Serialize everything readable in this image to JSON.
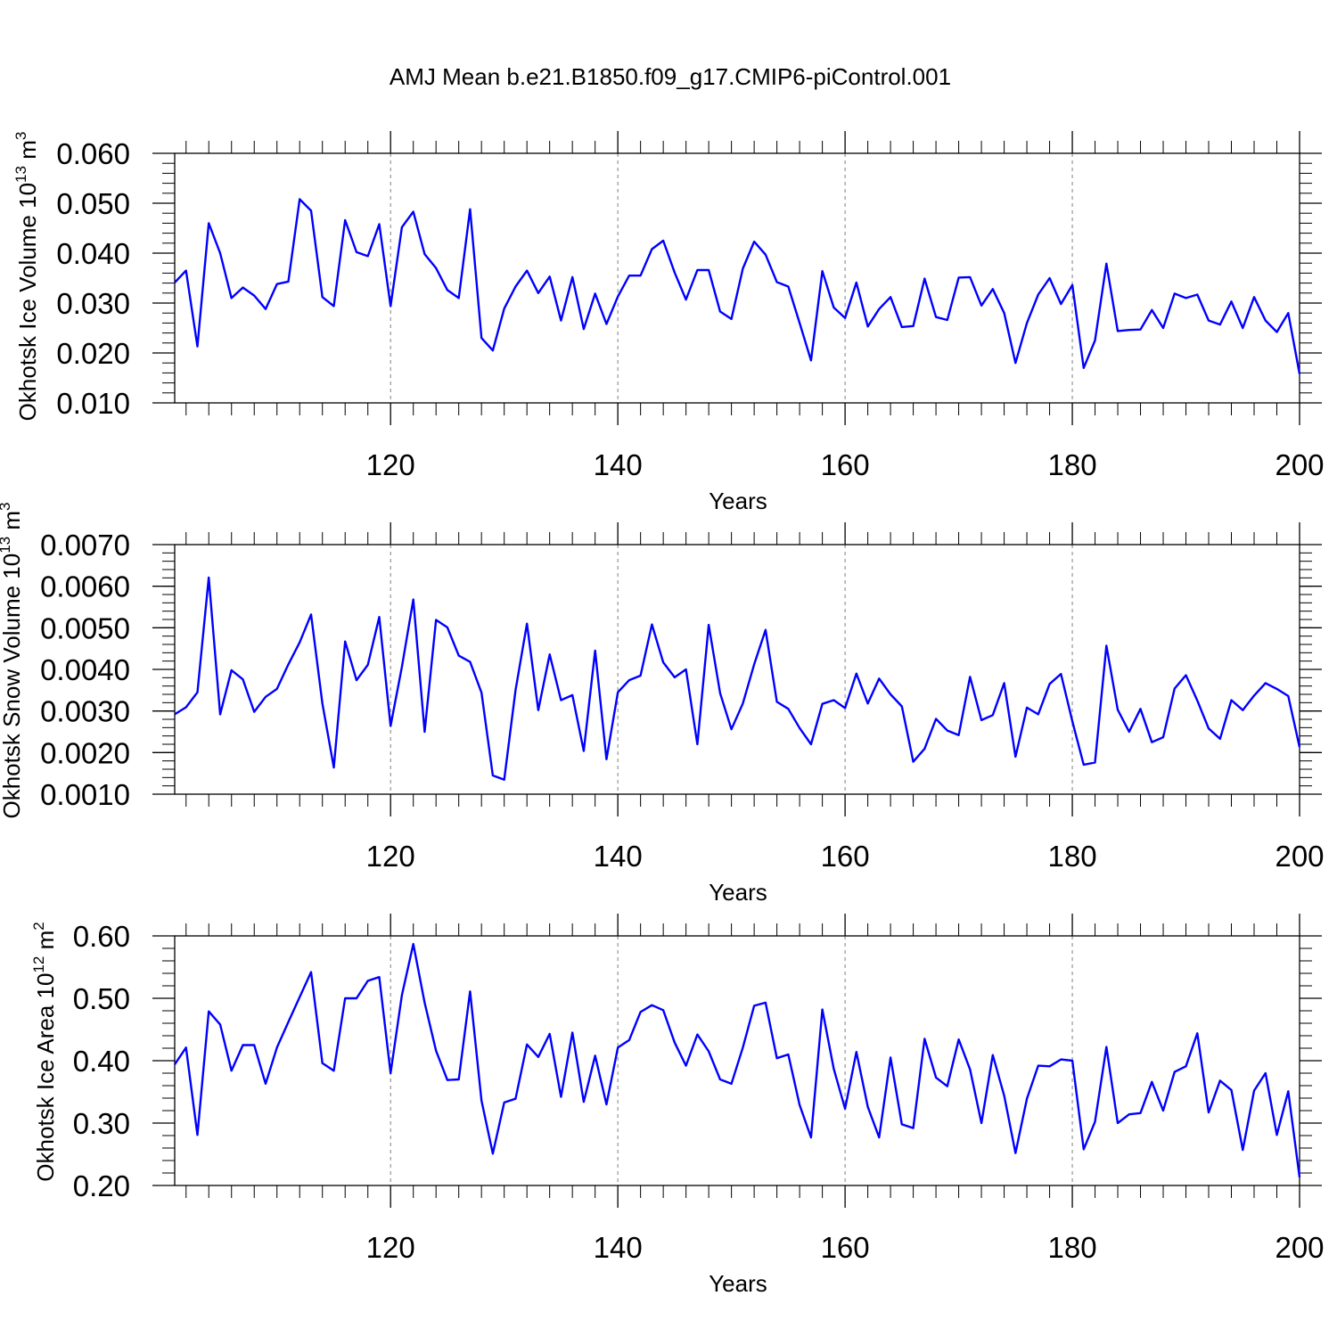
{
  "title": "AMJ Mean b.e21.B1850.f09_g17.CMIP6-piControl.001",
  "colors": {
    "line": "#0000ff",
    "axis": "#000000",
    "grid": "#7f7f7f"
  },
  "chart_data": [
    {
      "type": "line",
      "xlabel": "Years",
      "ylabel": {
        "main": "Okhotsk Ice Volume 10",
        "exp": "13",
        "mid": " m",
        "unit_exp": "3"
      },
      "xlim": [
        101,
        200
      ],
      "ylim": [
        0.01,
        0.06
      ],
      "xticks": [
        120,
        140,
        160,
        180,
        200
      ],
      "xtick_labels": [
        "120",
        "140",
        "160",
        "180",
        "200"
      ],
      "yticks": [
        0.01,
        0.02,
        0.03,
        0.04,
        0.05,
        0.06
      ],
      "ytick_labels": [
        "0.010",
        "0.020",
        "0.030",
        "0.040",
        "0.050",
        "0.060"
      ],
      "yminor": 0.002,
      "x_start": 101,
      "values": [
        0.0341,
        0.0365,
        0.0213,
        0.046,
        0.04,
        0.031,
        0.0331,
        0.0315,
        0.0288,
        0.0338,
        0.0343,
        0.0508,
        0.0485,
        0.0312,
        0.0294,
        0.0466,
        0.0402,
        0.0394,
        0.0458,
        0.0294,
        0.0452,
        0.0483,
        0.0398,
        0.037,
        0.0326,
        0.031,
        0.0488,
        0.023,
        0.0205,
        0.0289,
        0.0333,
        0.0365,
        0.032,
        0.0353,
        0.0265,
        0.0352,
        0.0248,
        0.0319,
        0.0258,
        0.0313,
        0.0355,
        0.0355,
        0.0408,
        0.0425,
        0.0361,
        0.0307,
        0.0366,
        0.0366,
        0.0283,
        0.0268,
        0.0369,
        0.0423,
        0.0397,
        0.0342,
        0.0333,
        0.026,
        0.0185,
        0.0364,
        0.0291,
        0.027,
        0.0341,
        0.0253,
        0.0288,
        0.0312,
        0.0252,
        0.0254,
        0.0349,
        0.0272,
        0.0266,
        0.0351,
        0.0352,
        0.0295,
        0.0328,
        0.028,
        0.018,
        0.026,
        0.0317,
        0.035,
        0.0298,
        0.0336,
        0.017,
        0.0225,
        0.0379,
        0.0244,
        0.0246,
        0.0247,
        0.0286,
        0.025,
        0.0319,
        0.031,
        0.0317,
        0.0265,
        0.0257,
        0.0303,
        0.025,
        0.0312,
        0.0265,
        0.0242,
        0.028,
        0.0158
      ]
    },
    {
      "type": "line",
      "xlabel": "Years",
      "ylabel": {
        "main": "Okhotsk Snow Volume 10",
        "exp": "13",
        "mid": " m",
        "unit_exp": "3"
      },
      "xlim": [
        101,
        200
      ],
      "ylim": [
        0.001,
        0.007
      ],
      "xticks": [
        120,
        140,
        160,
        180,
        200
      ],
      "xtick_labels": [
        "120",
        "140",
        "160",
        "180",
        "200"
      ],
      "yticks": [
        0.001,
        0.002,
        0.003,
        0.004,
        0.005,
        0.006,
        0.007
      ],
      "ytick_labels": [
        "0.0010",
        "0.0020",
        "0.0030",
        "0.0040",
        "0.0050",
        "0.0060",
        "0.0070"
      ],
      "yminor": 0.0002,
      "x_start": 101,
      "values": [
        0.00292,
        0.00309,
        0.00345,
        0.00621,
        0.00292,
        0.00398,
        0.00376,
        0.00298,
        0.00334,
        0.00353,
        0.00412,
        0.00465,
        0.00532,
        0.00318,
        0.00164,
        0.00467,
        0.00374,
        0.00411,
        0.00526,
        0.00264,
        0.00406,
        0.00568,
        0.0025,
        0.00519,
        0.00501,
        0.00433,
        0.00418,
        0.00344,
        0.00145,
        0.00135,
        0.0035,
        0.0051,
        0.00302,
        0.00436,
        0.00326,
        0.00338,
        0.00204,
        0.00445,
        0.00184,
        0.00345,
        0.00374,
        0.00385,
        0.00508,
        0.00417,
        0.00381,
        0.004,
        0.0022,
        0.00507,
        0.00343,
        0.00256,
        0.00318,
        0.00412,
        0.00495,
        0.00322,
        0.00305,
        0.00259,
        0.0022,
        0.00317,
        0.00326,
        0.00307,
        0.0039,
        0.00318,
        0.00378,
        0.0034,
        0.00311,
        0.00178,
        0.00209,
        0.00281,
        0.00253,
        0.00242,
        0.00382,
        0.00278,
        0.0029,
        0.00367,
        0.0019,
        0.00308,
        0.00292,
        0.00365,
        0.00389,
        0.00275,
        0.00171,
        0.00176,
        0.00457,
        0.00303,
        0.0025,
        0.00305,
        0.00225,
        0.00237,
        0.00354,
        0.00386,
        0.00325,
        0.00258,
        0.00233,
        0.00326,
        0.00302,
        0.00337,
        0.00367,
        0.00353,
        0.00336,
        0.00213
      ]
    },
    {
      "type": "line",
      "xlabel": "Years",
      "ylabel": {
        "main": "Okhotsk Ice Area 10",
        "exp": "12",
        "mid": " m",
        "unit_exp": "2"
      },
      "xlim": [
        101,
        200
      ],
      "ylim": [
        0.2,
        0.6
      ],
      "xticks": [
        120,
        140,
        160,
        180,
        200
      ],
      "xtick_labels": [
        "120",
        "140",
        "160",
        "180",
        "200"
      ],
      "yticks": [
        0.2,
        0.3,
        0.4,
        0.5,
        0.6
      ],
      "ytick_labels": [
        "0.20",
        "0.30",
        "0.40",
        "0.50",
        "0.60"
      ],
      "yminor": 0.02,
      "x_start": 101,
      "values": [
        0.394,
        0.421,
        0.281,
        0.479,
        0.458,
        0.384,
        0.425,
        0.425,
        0.363,
        0.421,
        0.462,
        0.502,
        0.542,
        0.396,
        0.384,
        0.5,
        0.5,
        0.528,
        0.534,
        0.38,
        0.505,
        0.587,
        0.493,
        0.416,
        0.369,
        0.37,
        0.511,
        0.336,
        0.251,
        0.333,
        0.339,
        0.426,
        0.406,
        0.443,
        0.342,
        0.445,
        0.334,
        0.408,
        0.33,
        0.421,
        0.433,
        0.478,
        0.489,
        0.481,
        0.429,
        0.392,
        0.442,
        0.415,
        0.37,
        0.363,
        0.421,
        0.488,
        0.493,
        0.404,
        0.41,
        0.329,
        0.277,
        0.482,
        0.387,
        0.323,
        0.414,
        0.326,
        0.277,
        0.405,
        0.298,
        0.292,
        0.435,
        0.373,
        0.359,
        0.434,
        0.386,
        0.3,
        0.409,
        0.344,
        0.252,
        0.339,
        0.392,
        0.391,
        0.402,
        0.4,
        0.258,
        0.302,
        0.422,
        0.3,
        0.314,
        0.316,
        0.366,
        0.32,
        0.382,
        0.391,
        0.444,
        0.317,
        0.368,
        0.353,
        0.257,
        0.352,
        0.38,
        0.281,
        0.351,
        0.213
      ]
    }
  ]
}
